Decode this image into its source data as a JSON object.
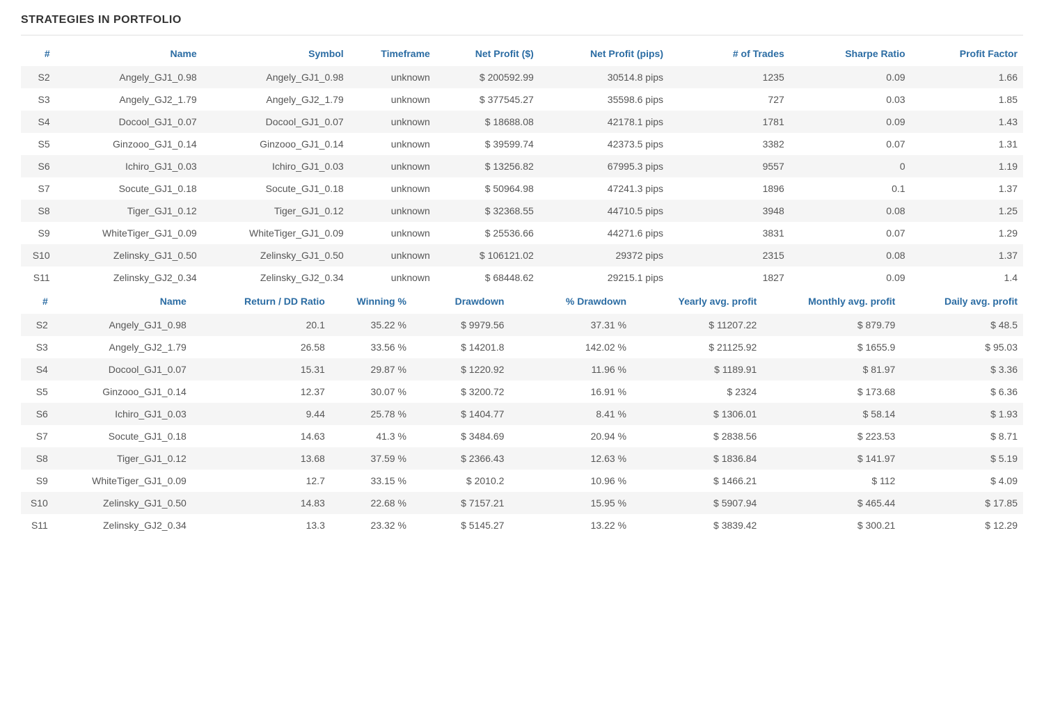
{
  "title": "STRATEGIES IN PORTFOLIO",
  "colors": {
    "header_text": "#2b6ca3",
    "body_text": "#555555",
    "title_text": "#333333",
    "row_odd_bg": "#f5f5f5",
    "row_even_bg": "#ffffff",
    "divider": "#e0e0e0"
  },
  "table1": {
    "headers": {
      "idx": "#",
      "name": "Name",
      "symbol": "Symbol",
      "timeframe": "Timeframe",
      "net_profit_usd": "Net Profit ($)",
      "net_profit_pips": "Net Profit (pips)",
      "trades": "# of Trades",
      "sharpe": "Sharpe Ratio",
      "profit_factor": "Profit Factor"
    },
    "rows": [
      {
        "idx": "S2",
        "name": "Angely_GJ1_0.98",
        "symbol": "Angely_GJ1_0.98",
        "timeframe": "unknown",
        "net_profit_usd": "$ 200592.99",
        "net_profit_pips": "30514.8 pips",
        "trades": "1235",
        "sharpe": "0.09",
        "profit_factor": "1.66"
      },
      {
        "idx": "S3",
        "name": "Angely_GJ2_1.79",
        "symbol": "Angely_GJ2_1.79",
        "timeframe": "unknown",
        "net_profit_usd": "$ 377545.27",
        "net_profit_pips": "35598.6 pips",
        "trades": "727",
        "sharpe": "0.03",
        "profit_factor": "1.85"
      },
      {
        "idx": "S4",
        "name": "Docool_GJ1_0.07",
        "symbol": "Docool_GJ1_0.07",
        "timeframe": "unknown",
        "net_profit_usd": "$ 18688.08",
        "net_profit_pips": "42178.1 pips",
        "trades": "1781",
        "sharpe": "0.09",
        "profit_factor": "1.43"
      },
      {
        "idx": "S5",
        "name": "Ginzooo_GJ1_0.14",
        "symbol": "Ginzooo_GJ1_0.14",
        "timeframe": "unknown",
        "net_profit_usd": "$ 39599.74",
        "net_profit_pips": "42373.5 pips",
        "trades": "3382",
        "sharpe": "0.07",
        "profit_factor": "1.31"
      },
      {
        "idx": "S6",
        "name": "Ichiro_GJ1_0.03",
        "symbol": "Ichiro_GJ1_0.03",
        "timeframe": "unknown",
        "net_profit_usd": "$ 13256.82",
        "net_profit_pips": "67995.3 pips",
        "trades": "9557",
        "sharpe": "0",
        "profit_factor": "1.19"
      },
      {
        "idx": "S7",
        "name": "Socute_GJ1_0.18",
        "symbol": "Socute_GJ1_0.18",
        "timeframe": "unknown",
        "net_profit_usd": "$ 50964.98",
        "net_profit_pips": "47241.3 pips",
        "trades": "1896",
        "sharpe": "0.1",
        "profit_factor": "1.37"
      },
      {
        "idx": "S8",
        "name": "Tiger_GJ1_0.12",
        "symbol": "Tiger_GJ1_0.12",
        "timeframe": "unknown",
        "net_profit_usd": "$ 32368.55",
        "net_profit_pips": "44710.5 pips",
        "trades": "3948",
        "sharpe": "0.08",
        "profit_factor": "1.25"
      },
      {
        "idx": "S9",
        "name": "WhiteTiger_GJ1_0.09",
        "symbol": "WhiteTiger_GJ1_0.09",
        "timeframe": "unknown",
        "net_profit_usd": "$ 25536.66",
        "net_profit_pips": "44271.6 pips",
        "trades": "3831",
        "sharpe": "0.07",
        "profit_factor": "1.29"
      },
      {
        "idx": "S10",
        "name": "Zelinsky_GJ1_0.50",
        "symbol": "Zelinsky_GJ1_0.50",
        "timeframe": "unknown",
        "net_profit_usd": "$ 106121.02",
        "net_profit_pips": "29372 pips",
        "trades": "2315",
        "sharpe": "0.08",
        "profit_factor": "1.37"
      },
      {
        "idx": "S11",
        "name": "Zelinsky_GJ2_0.34",
        "symbol": "Zelinsky_GJ2_0.34",
        "timeframe": "unknown",
        "net_profit_usd": "$ 68448.62",
        "net_profit_pips": "29215.1 pips",
        "trades": "1827",
        "sharpe": "0.09",
        "profit_factor": "1.4"
      }
    ]
  },
  "table2": {
    "headers": {
      "idx": "#",
      "name": "Name",
      "return_dd": "Return / DD Ratio",
      "winning": "Winning %",
      "drawdown": "Drawdown",
      "pct_drawdown": "% Drawdown",
      "yearly": "Yearly avg. profit",
      "monthly": "Monthly avg. profit",
      "daily": "Daily avg. profit"
    },
    "rows": [
      {
        "idx": "S2",
        "name": "Angely_GJ1_0.98",
        "return_dd": "20.1",
        "winning": "35.22 %",
        "drawdown": "$ 9979.56",
        "pct_drawdown": "37.31 %",
        "yearly": "$ 11207.22",
        "monthly": "$ 879.79",
        "daily": "$ 48.5"
      },
      {
        "idx": "S3",
        "name": "Angely_GJ2_1.79",
        "return_dd": "26.58",
        "winning": "33.56 %",
        "drawdown": "$ 14201.8",
        "pct_drawdown": "142.02 %",
        "yearly": "$ 21125.92",
        "monthly": "$ 1655.9",
        "daily": "$ 95.03"
      },
      {
        "idx": "S4",
        "name": "Docool_GJ1_0.07",
        "return_dd": "15.31",
        "winning": "29.87 %",
        "drawdown": "$ 1220.92",
        "pct_drawdown": "11.96 %",
        "yearly": "$ 1189.91",
        "monthly": "$ 81.97",
        "daily": "$ 3.36"
      },
      {
        "idx": "S5",
        "name": "Ginzooo_GJ1_0.14",
        "return_dd": "12.37",
        "winning": "30.07 %",
        "drawdown": "$ 3200.72",
        "pct_drawdown": "16.91 %",
        "yearly": "$ 2324",
        "monthly": "$ 173.68",
        "daily": "$ 6.36"
      },
      {
        "idx": "S6",
        "name": "Ichiro_GJ1_0.03",
        "return_dd": "9.44",
        "winning": "25.78 %",
        "drawdown": "$ 1404.77",
        "pct_drawdown": "8.41 %",
        "yearly": "$ 1306.01",
        "monthly": "$ 58.14",
        "daily": "$ 1.93"
      },
      {
        "idx": "S7",
        "name": "Socute_GJ1_0.18",
        "return_dd": "14.63",
        "winning": "41.3 %",
        "drawdown": "$ 3484.69",
        "pct_drawdown": "20.94 %",
        "yearly": "$ 2838.56",
        "monthly": "$ 223.53",
        "daily": "$ 8.71"
      },
      {
        "idx": "S8",
        "name": "Tiger_GJ1_0.12",
        "return_dd": "13.68",
        "winning": "37.59 %",
        "drawdown": "$ 2366.43",
        "pct_drawdown": "12.63 %",
        "yearly": "$ 1836.84",
        "monthly": "$ 141.97",
        "daily": "$ 5.19"
      },
      {
        "idx": "S9",
        "name": "WhiteTiger_GJ1_0.09",
        "return_dd": "12.7",
        "winning": "33.15 %",
        "drawdown": "$ 2010.2",
        "pct_drawdown": "10.96 %",
        "yearly": "$ 1466.21",
        "monthly": "$ 112",
        "daily": "$ 4.09"
      },
      {
        "idx": "S10",
        "name": "Zelinsky_GJ1_0.50",
        "return_dd": "14.83",
        "winning": "22.68 %",
        "drawdown": "$ 7157.21",
        "pct_drawdown": "15.95 %",
        "yearly": "$ 5907.94",
        "monthly": "$ 465.44",
        "daily": "$ 17.85"
      },
      {
        "idx": "S11",
        "name": "Zelinsky_GJ2_0.34",
        "return_dd": "13.3",
        "winning": "23.32 %",
        "drawdown": "$ 5145.27",
        "pct_drawdown": "13.22 %",
        "yearly": "$ 3839.42",
        "monthly": "$ 300.21",
        "daily": "$ 12.29"
      }
    ]
  }
}
